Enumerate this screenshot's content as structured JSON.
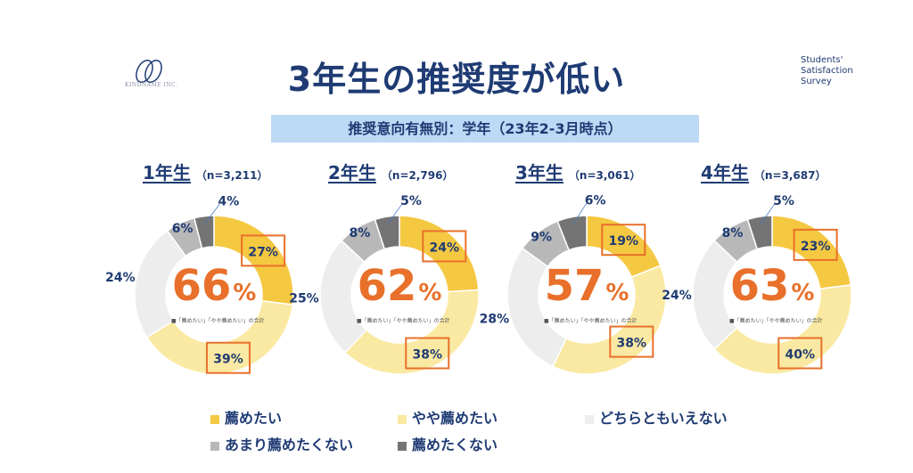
{
  "header": {
    "logo_text": "KINDNAME INC.",
    "title": "3年生の推奨度が低い",
    "survey_lines": [
      "Students'",
      "Satisfaction",
      "Survey"
    ],
    "subtitle": "推奨意向有無別：学年（23年2-3月時点）"
  },
  "colors": {
    "recommend": "#f5c842",
    "somewhat": "#fae9a2",
    "neutral": "#ededed",
    "not_really": "#b8b8b8",
    "not": "#747474",
    "highlight_box": "#e8702a",
    "title": "#1f3b73"
  },
  "chart_data": [
    {
      "type": "pie",
      "grade": "1年生",
      "n": "（n=3,211）",
      "total_label": "66",
      "total_symbol": "%",
      "note": "■「薦めたい」「やや薦めたい」の合計",
      "values": [
        27,
        39,
        24,
        6,
        4
      ],
      "labels": [
        "27%",
        "39%",
        "24%",
        "6%",
        "4%"
      ]
    },
    {
      "type": "pie",
      "grade": "2年生",
      "n": "（n=2,796）",
      "total_label": "62",
      "total_symbol": "%",
      "note": "■「薦めたい」「やや薦めたい」の合計",
      "values": [
        24,
        38,
        25,
        8,
        5
      ],
      "labels": [
        "24%",
        "38%",
        "25%",
        "8%",
        "5%"
      ]
    },
    {
      "type": "pie",
      "grade": "3年生",
      "n": "（n=3,061）",
      "total_label": "57",
      "total_symbol": "%",
      "note": "■「薦めたい」「やや薦めたい」の合計",
      "values": [
        19,
        38,
        28,
        9,
        6
      ],
      "labels": [
        "19%",
        "38%",
        "28%",
        "9%",
        "6%"
      ]
    },
    {
      "type": "pie",
      "grade": "4年生",
      "n": "（n=3,687）",
      "total_label": "63",
      "total_symbol": "%",
      "note": "■「薦めたい」「やや薦めたい」の合計",
      "values": [
        23,
        40,
        24,
        8,
        5
      ],
      "labels": [
        "23%",
        "40%",
        "24%",
        "8%",
        "5%"
      ]
    }
  ],
  "legend": [
    {
      "label": "薦めたい",
      "color": "#f5c842"
    },
    {
      "label": "やや薦めたい",
      "color": "#fae9a2"
    },
    {
      "label": "どちらともいえない",
      "color": "#ededed"
    },
    {
      "label": "あまり薦めたくない",
      "color": "#b8b8b8"
    },
    {
      "label": "薦めたくない",
      "color": "#747474"
    }
  ]
}
